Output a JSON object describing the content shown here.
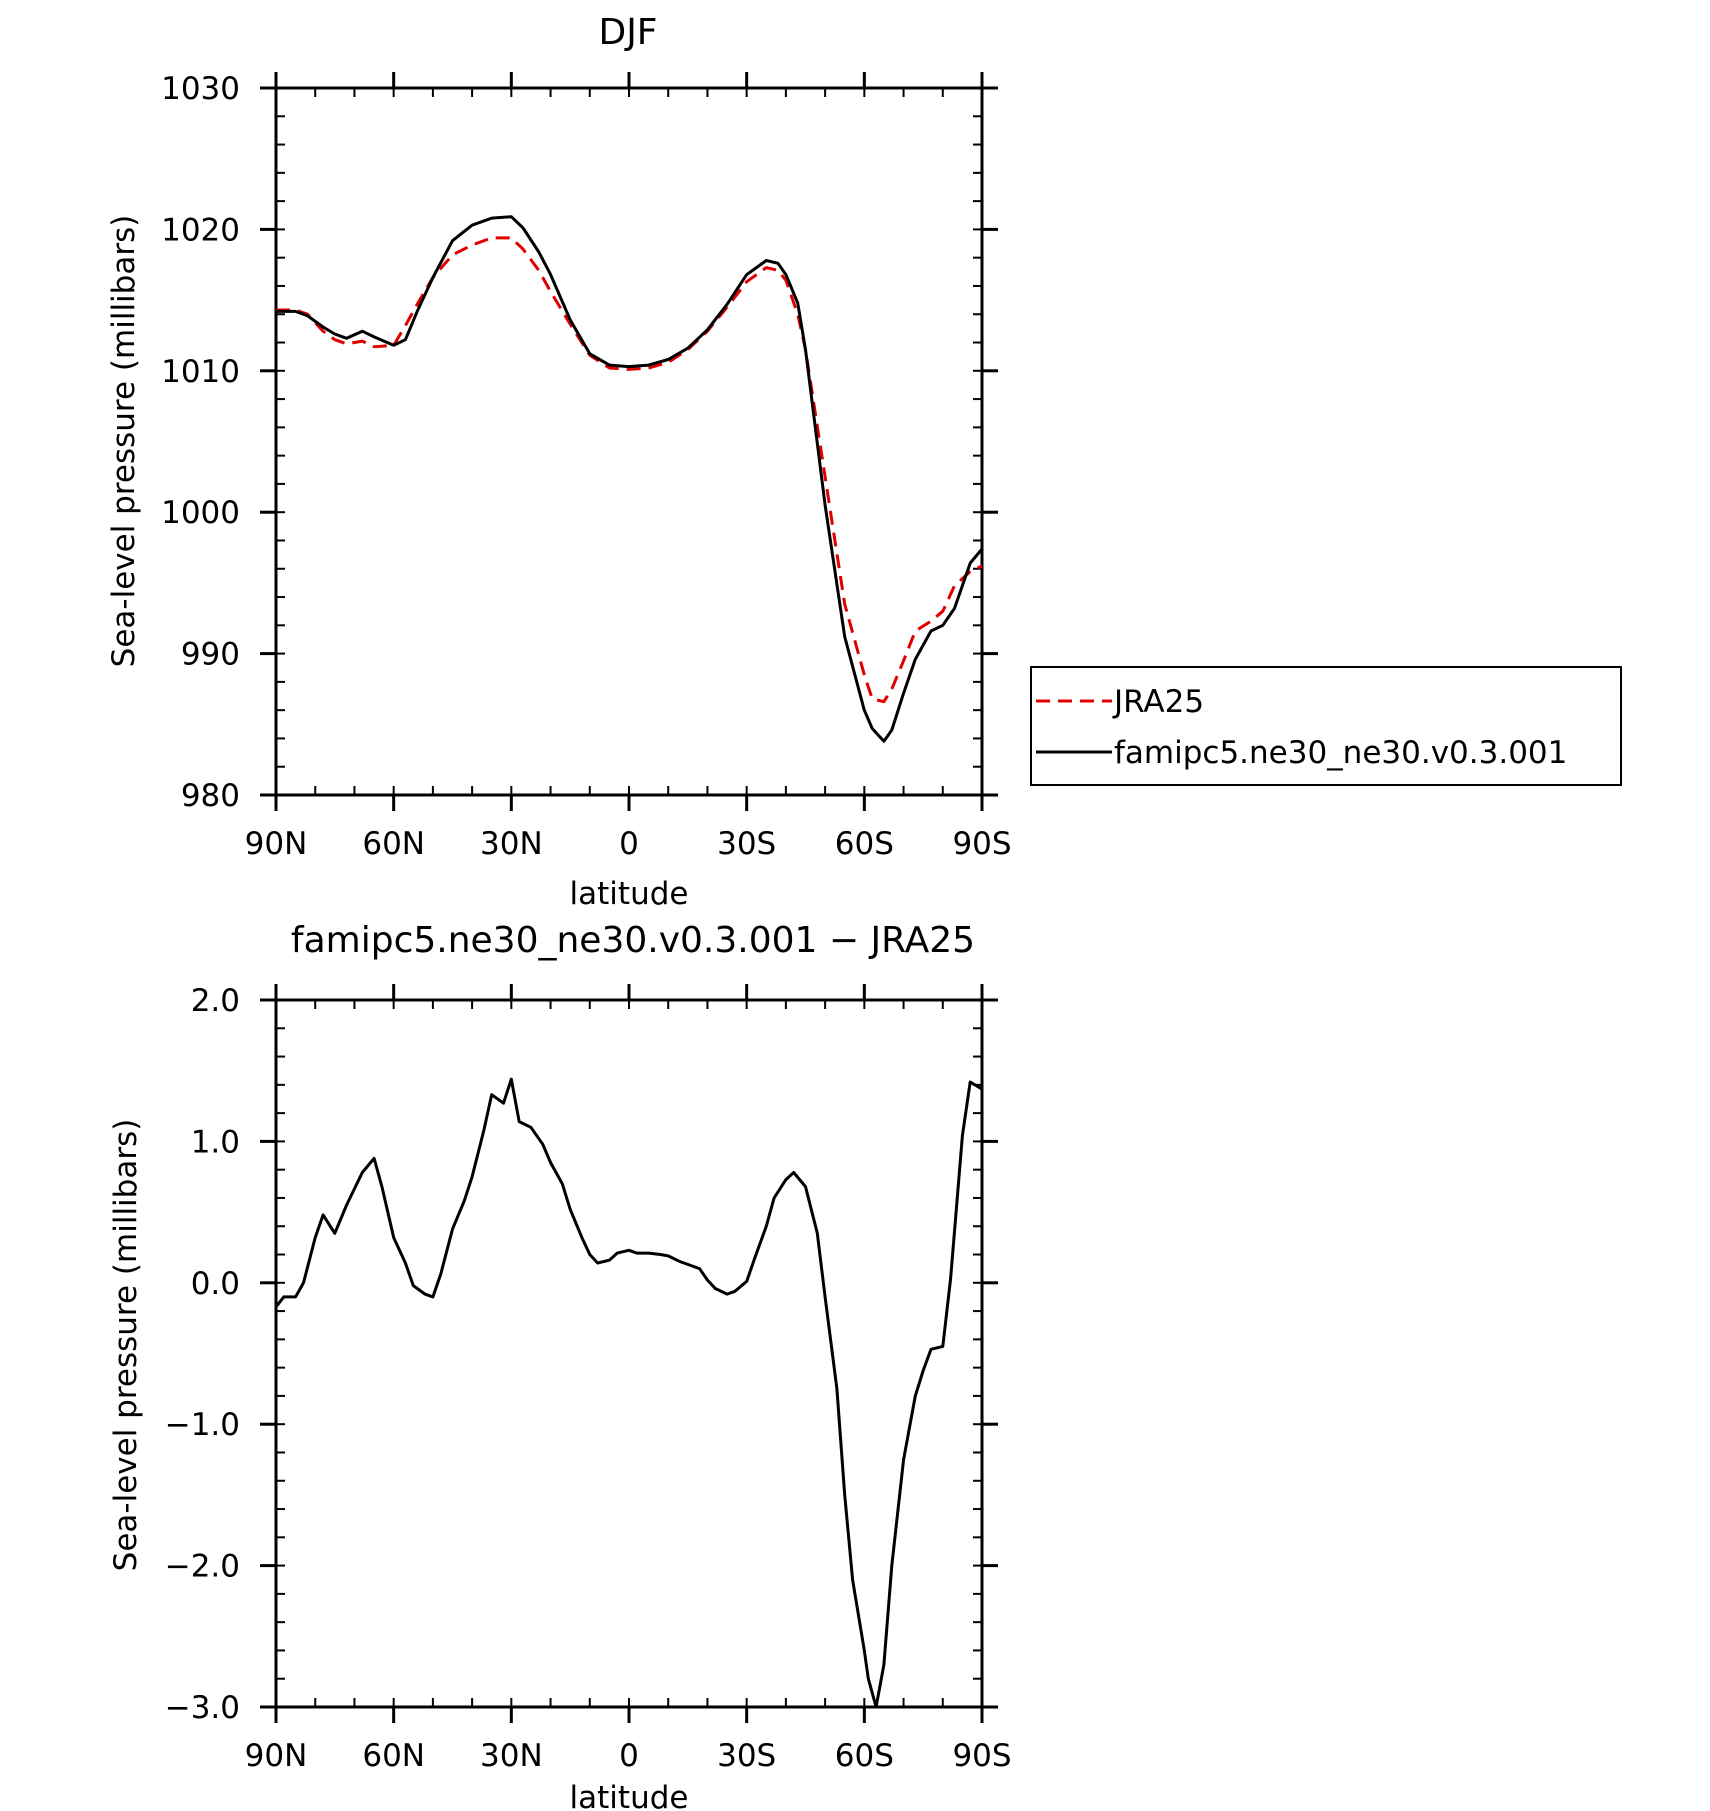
{
  "chart_data": [
    {
      "type": "line",
      "title": "DJF",
      "xlabel": "latitude",
      "ylabel": "Sea-level pressure (millibars)",
      "xlim": [
        90,
        -90
      ],
      "ylim": [
        980,
        1030
      ],
      "x_tick_values": [
        90,
        60,
        30,
        0,
        -30,
        -60,
        -90
      ],
      "x_tick_labels": [
        "90N",
        "60N",
        "30N",
        "0",
        "30S",
        "60S",
        "90S"
      ],
      "y_tick_values": [
        980,
        990,
        1000,
        1010,
        1020,
        1030
      ],
      "y_tick_labels": [
        "980",
        "990",
        "1000",
        "1010",
        "1020",
        "1030"
      ],
      "grid": false,
      "legend_position": "right",
      "series": [
        {
          "name": "JRA25",
          "color": "#e00000",
          "dash": "dashed",
          "x": [
            90,
            85,
            82,
            78,
            75,
            72,
            68,
            65,
            60,
            57,
            54,
            50,
            45,
            40,
            35,
            30,
            27,
            23,
            20,
            15,
            10,
            5,
            0,
            -5,
            -10,
            -15,
            -20,
            -25,
            -30,
            -35,
            -38,
            -40,
            -43,
            -45,
            -50,
            -55,
            -60,
            -62,
            -65,
            -67,
            -70,
            -73,
            -77,
            -80,
            -83,
            -87,
            -90
          ],
          "y": [
            1014.3,
            1014.3,
            1014.0,
            1012.8,
            1012.2,
            1011.9,
            1012.1,
            1011.7,
            1011.8,
            1013.2,
            1014.7,
            1016.6,
            1018.2,
            1018.9,
            1019.4,
            1019.4,
            1018.6,
            1017.1,
            1015.6,
            1013.3,
            1011.1,
            1010.2,
            1010.1,
            1010.2,
            1010.6,
            1011.5,
            1012.8,
            1014.5,
            1016.3,
            1017.3,
            1017.1,
            1016.4,
            1014.0,
            1011.5,
            1002.5,
            993.5,
            988.5,
            986.8,
            986.6,
            987.5,
            989.5,
            991.6,
            992.3,
            993.0,
            994.8,
            995.8,
            996.2
          ]
        },
        {
          "name": "famipc5.ne30_ne30.v0.3.001",
          "color": "#000000",
          "dash": "solid",
          "x": [
            90,
            85,
            82,
            78,
            75,
            72,
            68,
            65,
            60,
            57,
            54,
            50,
            45,
            40,
            35,
            30,
            27,
            23,
            20,
            15,
            10,
            5,
            0,
            -5,
            -10,
            -15,
            -20,
            -25,
            -30,
            -35,
            -38,
            -40,
            -43,
            -45,
            -50,
            -55,
            -60,
            -62,
            -65,
            -67,
            -70,
            -73,
            -77,
            -80,
            -83,
            -87,
            -90
          ],
          "y": [
            1014.2,
            1014.2,
            1013.9,
            1013.1,
            1012.6,
            1012.3,
            1012.8,
            1012.4,
            1011.8,
            1012.2,
            1014.2,
            1016.6,
            1019.2,
            1020.3,
            1020.8,
            1020.9,
            1020.1,
            1018.4,
            1016.8,
            1013.6,
            1011.2,
            1010.4,
            1010.3,
            1010.4,
            1010.8,
            1011.6,
            1012.9,
            1014.7,
            1016.8,
            1017.8,
            1017.6,
            1016.8,
            1014.8,
            1011.5,
            1000.5,
            991.2,
            986.0,
            984.7,
            983.8,
            984.6,
            987.2,
            989.6,
            991.6,
            992.0,
            993.2,
            996.4,
            997.4
          ]
        }
      ]
    },
    {
      "type": "line",
      "title": "famipc5.ne30_ne30.v0.3.001 − JRA25",
      "xlabel": "latitude",
      "ylabel": "Sea-level pressure (millibars)",
      "xlim": [
        90,
        -90
      ],
      "ylim": [
        -3.0,
        2.0
      ],
      "x_tick_values": [
        90,
        60,
        30,
        0,
        -30,
        -60,
        -90
      ],
      "x_tick_labels": [
        "90N",
        "60N",
        "30N",
        "0",
        "30S",
        "60S",
        "90S"
      ],
      "y_tick_values": [
        -3.0,
        -2.0,
        -1.0,
        0.0,
        1.0,
        2.0
      ],
      "y_tick_labels": [
        "−3.0",
        "−2.0",
        "−1.0",
        "0.0",
        "1.0",
        "2.0"
      ],
      "grid": false,
      "series": [
        {
          "color": "#000000",
          "dash": "solid",
          "x": [
            90,
            88,
            85,
            83,
            80,
            78,
            75,
            72,
            68,
            65,
            63,
            60,
            57,
            55,
            52,
            50,
            48,
            45,
            42,
            40,
            37,
            35,
            32,
            30,
            28,
            25,
            22,
            20,
            17,
            15,
            12,
            10,
            8,
            5,
            3,
            0,
            -2,
            -5,
            -8,
            -10,
            -13,
            -15,
            -18,
            -20,
            -22,
            -25,
            -27,
            -30,
            -32,
            -35,
            -37,
            -40,
            -42,
            -45,
            -48,
            -50,
            -53,
            -55,
            -57,
            -60,
            -61,
            -63,
            -65,
            -67,
            -70,
            -73,
            -75,
            -77,
            -80,
            -82,
            -85,
            -87,
            -90
          ],
          "y": [
            -0.17,
            -0.1,
            -0.1,
            0.0,
            0.32,
            0.48,
            0.35,
            0.55,
            0.78,
            0.88,
            0.68,
            0.32,
            0.14,
            -0.02,
            -0.08,
            -0.1,
            0.06,
            0.38,
            0.58,
            0.75,
            1.08,
            1.33,
            1.27,
            1.44,
            1.14,
            1.1,
            0.98,
            0.85,
            0.7,
            0.52,
            0.32,
            0.2,
            0.14,
            0.16,
            0.21,
            0.23,
            0.21,
            0.21,
            0.2,
            0.19,
            0.15,
            0.13,
            0.1,
            0.02,
            -0.04,
            -0.08,
            -0.06,
            0.01,
            0.17,
            0.4,
            0.6,
            0.73,
            0.78,
            0.68,
            0.35,
            -0.1,
            -0.75,
            -1.5,
            -2.1,
            -2.6,
            -2.8,
            -3.0,
            -2.7,
            -2.0,
            -1.25,
            -0.8,
            -0.62,
            -0.47,
            -0.45,
            0.03,
            1.04,
            1.42,
            1.37
          ]
        }
      ]
    }
  ],
  "legend": {
    "items": [
      {
        "label": "JRA25",
        "color": "#e00000",
        "dash": "dashed"
      },
      {
        "label": "famipc5.ne30_ne30.v0.3.001",
        "color": "#000000",
        "dash": "solid"
      }
    ]
  }
}
